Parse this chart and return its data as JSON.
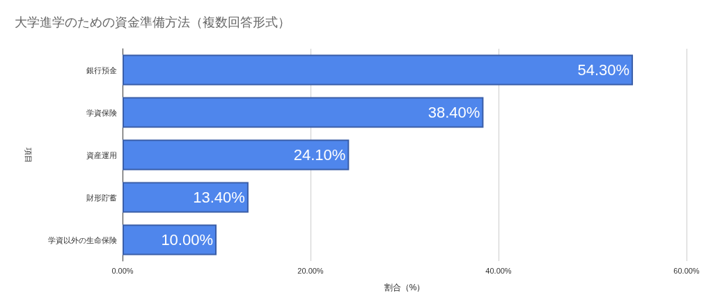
{
  "chart_data": {
    "type": "bar",
    "orientation": "horizontal",
    "title": "大学進学のための資金準備方法（複数回答形式）",
    "xlabel": "割合（%）",
    "ylabel": "項目",
    "categories": [
      "銀行預金",
      "学資保険",
      "資産運用",
      "財形貯蓄",
      "学資以外の生命保険"
    ],
    "values": [
      54.3,
      38.4,
      24.1,
      13.4,
      10.0
    ],
    "value_labels": [
      "54.30%",
      "38.40%",
      "24.10%",
      "13.40%",
      "10.00%"
    ],
    "color": "#4f86ec",
    "xlim": [
      0,
      60
    ],
    "xticks": [
      {
        "value": 0,
        "label": "0.00%"
      },
      {
        "value": 20,
        "label": "20.00%"
      },
      {
        "value": 40,
        "label": "40.00%"
      },
      {
        "value": 60,
        "label": "60.00%"
      }
    ],
    "grid": "x"
  }
}
